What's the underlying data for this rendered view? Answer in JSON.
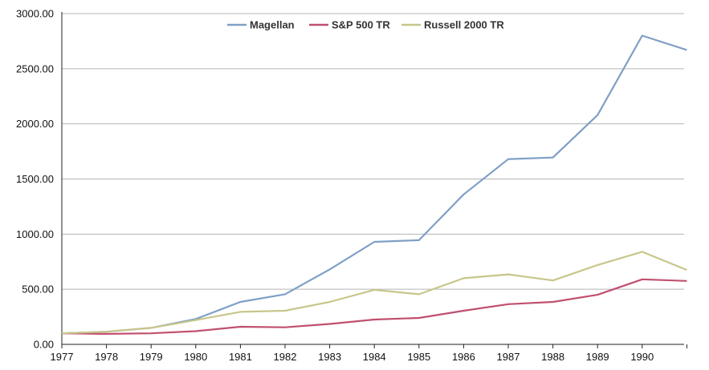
{
  "chart_data": {
    "type": "line",
    "x": [
      1977,
      1978,
      1979,
      1980,
      1981,
      1982,
      1983,
      1984,
      1985,
      1986,
      1987,
      1988,
      1989,
      1990,
      1991
    ],
    "x_tick_labels": [
      "1977",
      "1978",
      "1979",
      "1980",
      "1981",
      "1982",
      "1983",
      "1984",
      "1985",
      "1986",
      "1987",
      "1988",
      "1989",
      "1990"
    ],
    "y_tick_labels": [
      "0.00",
      "500.00",
      "1000.00",
      "1500.00",
      "2000.00",
      "2500.00",
      "3000.00"
    ],
    "y_ticks": [
      0,
      500,
      1000,
      1500,
      2000,
      2500,
      3000
    ],
    "ylim": [
      0,
      3000
    ],
    "grid": true,
    "legend_position": "top-center",
    "title": "",
    "xlabel": "",
    "ylabel": "",
    "series": [
      {
        "name": "Magellan",
        "color": "#7f9fc6",
        "values": [
          100,
          115,
          150,
          230,
          385,
          455,
          680,
          930,
          945,
          1360,
          1680,
          1695,
          2080,
          2800,
          2670
        ]
      },
      {
        "name": "S&P 500 TR",
        "color": "#c0506f",
        "values": [
          100,
          95,
          100,
          120,
          160,
          155,
          185,
          225,
          240,
          305,
          365,
          385,
          450,
          590,
          575
        ]
      },
      {
        "name": "Russell 2000 TR",
        "color": "#c8c68a",
        "values": [
          100,
          115,
          150,
          220,
          295,
          305,
          385,
          495,
          455,
          600,
          635,
          580,
          720,
          840,
          675
        ]
      }
    ]
  }
}
